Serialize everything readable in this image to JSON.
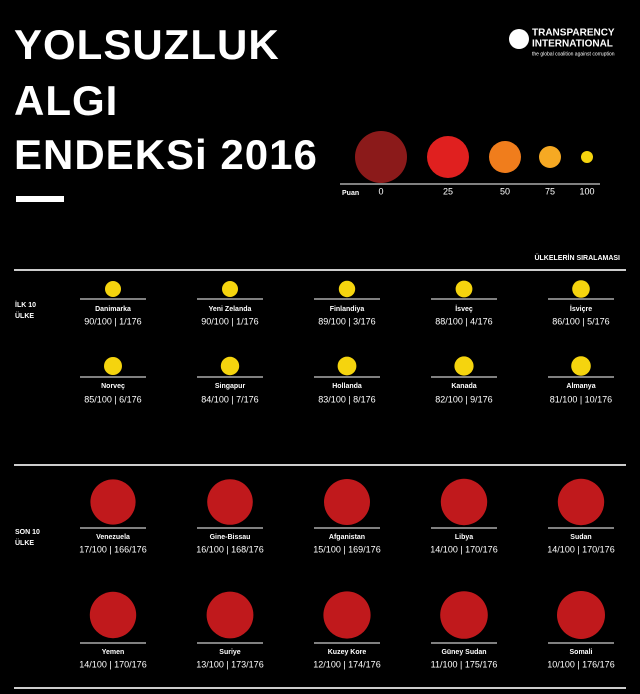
{
  "header": {
    "title_lines": [
      "YOLSUZLUK",
      "ALGI",
      "ENDEKSi 2016"
    ],
    "logo": {
      "name_lines": [
        "TRANSPARENCY",
        "INTERNATIONAL"
      ],
      "tagline": "the global coalition against corruption"
    }
  },
  "legend": {
    "label": "Puan",
    "items": [
      {
        "value": 0,
        "color": "#8b1a1a"
      },
      {
        "value": 25,
        "color": "#e0201f"
      },
      {
        "value": 50,
        "color": "#f07d1c"
      },
      {
        "value": 75,
        "color": "#f6a923"
      },
      {
        "value": 100,
        "color": "#f5d40e"
      }
    ]
  },
  "ranking_title": "ÜLKELERİN SIRALAMASI",
  "sections": [
    {
      "label_lines": [
        "İLK 10",
        "ÜLKE"
      ],
      "color": "#f5d40e",
      "countries": [
        {
          "name": "Danimarka",
          "score": 90,
          "label": "90/100 | 1/176"
        },
        {
          "name": "Yeni Zelanda",
          "score": 90,
          "label": "90/100 | 1/176"
        },
        {
          "name": "Finlandiya",
          "score": 89,
          "label": "89/100 | 3/176"
        },
        {
          "name": "İsveç",
          "score": 88,
          "label": "88/100 | 4/176"
        },
        {
          "name": "İsviçre",
          "score": 86,
          "label": "86/100 | 5/176"
        },
        {
          "name": "Norveç",
          "score": 85,
          "label": "85/100 | 6/176"
        },
        {
          "name": "Singapur",
          "score": 84,
          "label": "84/100 | 7/176"
        },
        {
          "name": "Hollanda",
          "score": 83,
          "label": "83/100 | 8/176"
        },
        {
          "name": "Kanada",
          "score": 82,
          "label": "82/100 | 9/176"
        },
        {
          "name": "Almanya",
          "score": 81,
          "label": "81/100 | 10/176"
        }
      ]
    },
    {
      "label_lines": [
        "SON 10",
        "ÜLKE"
      ],
      "color": "#c0191c",
      "countries": [
        {
          "name": "Venezuela",
          "score": 17,
          "label": "17/100 | 166/176"
        },
        {
          "name": "Gine-Bissau",
          "score": 16,
          "label": "16/100 | 168/176"
        },
        {
          "name": "Afganistan",
          "score": 15,
          "label": "15/100 | 169/176"
        },
        {
          "name": "Libya",
          "score": 14,
          "label": "14/100 | 170/176"
        },
        {
          "name": "Sudan",
          "score": 14,
          "label": "14/100 | 170/176"
        },
        {
          "name": "Yemen",
          "score": 14,
          "label": "14/100 | 170/176"
        },
        {
          "name": "Suriye",
          "score": 13,
          "label": "13/100 | 173/176"
        },
        {
          "name": "Kuzey Kore",
          "score": 12,
          "label": "12/100 | 174/176"
        },
        {
          "name": "Güney Sudan",
          "score": 11,
          "label": "11/100 | 175/176"
        },
        {
          "name": "Somali",
          "score": 10,
          "label": "10/100 | 176/176"
        }
      ]
    }
  ]
}
